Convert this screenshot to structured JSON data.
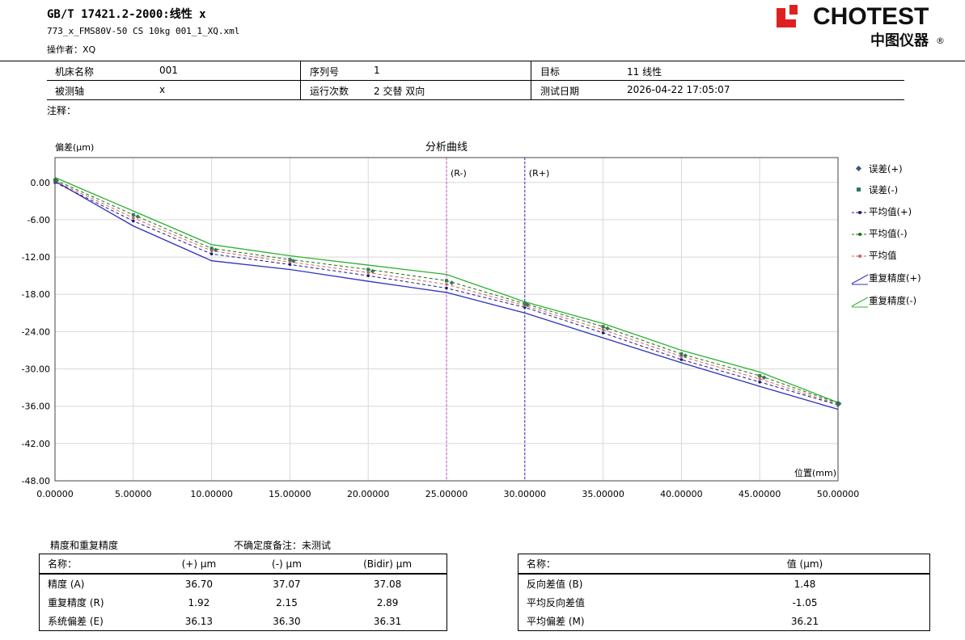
{
  "header": {
    "title": "GB/T 17421.2-2000:线性 x",
    "file": "773_x_FMS80V-50 CS 10kg 001_1_XQ.xml",
    "operator": "操作者：XQ",
    "logo_text": "CHOTEST",
    "logo_sub": "中图仪器",
    "logo_reg": "®",
    "brand_color": "#e02020"
  },
  "info": {
    "machine_label": "机床名称",
    "machine_value": "001",
    "axis_label": "被测轴",
    "axis_value": "x",
    "series_label": "序列号",
    "series_value": "1",
    "runs_label": "运行次数",
    "runs_value": "2 交替 双向",
    "target_label": "目标",
    "target_value": "11 线性",
    "date_label": "测试日期",
    "date_value": "2026-04-22 17:05:07",
    "notes_label": "注释："
  },
  "chart_data": {
    "type": "line",
    "title": "分析曲线",
    "ylabel": "偏差(μm)",
    "xlabel": "位置(mm)",
    "xlim": [
      0,
      50
    ],
    "ylim": [
      -48,
      4
    ],
    "x_ticks": [
      "0.00000",
      "5.00000",
      "10.00000",
      "15.00000",
      "20.00000",
      "25.00000",
      "30.00000",
      "35.00000",
      "40.00000",
      "45.00000",
      "50.00000"
    ],
    "y_ticks": [
      "0.00",
      "-6.00",
      "-12.00",
      "-18.00",
      "-24.00",
      "-30.00",
      "-36.00",
      "-42.00",
      "-48.00"
    ],
    "x": [
      0,
      5,
      10,
      15,
      20,
      25,
      30,
      35,
      40,
      45,
      50
    ],
    "markers": [
      {
        "label": "(R-)",
        "x": 25,
        "color": "#d040d0"
      },
      {
        "label": "(R+)",
        "x": 30,
        "color": "#3030c0"
      }
    ],
    "series": [
      {
        "name": "重复精度(+)",
        "color": "#3030c0",
        "style": "solid",
        "values": [
          0.2,
          -7.0,
          -12.6,
          -14.0,
          -15.9,
          -17.7,
          -21.0,
          -25.0,
          -29.0,
          -32.8,
          -36.5
        ]
      },
      {
        "name": "重复精度(-)",
        "color": "#30b030",
        "style": "solid",
        "values": [
          0.8,
          -4.6,
          -10.0,
          -11.8,
          -13.3,
          -14.8,
          -19.2,
          -22.7,
          -27.0,
          -30.5,
          -35.4
        ]
      },
      {
        "name": "平均值(+)",
        "color": "#1a1a80",
        "style": "dash",
        "values": [
          0.0,
          -6.2,
          -11.5,
          -13.2,
          -15.0,
          -17.0,
          -20.1,
          -24.2,
          -28.5,
          -32.1,
          -35.8
        ]
      },
      {
        "name": "平均值(-)",
        "color": "#1a701a",
        "style": "dash",
        "values": [
          0.4,
          -5.2,
          -10.6,
          -12.4,
          -14.0,
          -15.8,
          -19.5,
          -23.2,
          -27.6,
          -31.1,
          -35.5
        ]
      },
      {
        "name": "平均值",
        "color": "#d06060",
        "style": "dash",
        "values": [
          0.2,
          -5.7,
          -11.0,
          -12.8,
          -14.5,
          -16.4,
          -19.8,
          -23.7,
          -28.0,
          -31.6,
          -35.7
        ]
      }
    ],
    "legend": [
      "误差(+)",
      "误差(-)",
      "平均值(+)",
      "平均值(-)",
      "平均值",
      "重复精度(+)",
      "重复精度(-)"
    ],
    "legend_placement": "right",
    "grid": true
  },
  "tables": {
    "caption": "精度和重复精度",
    "uncertainty": "不确定度备注：未测试",
    "left": {
      "headers": [
        "名称：",
        "(+) μm",
        "(-) μm",
        "(Bidir) μm"
      ],
      "rows": [
        [
          "精度 (A)",
          "36.70",
          "37.07",
          "37.08"
        ],
        [
          "重复精度 (R)",
          "1.92",
          "2.15",
          "2.89"
        ],
        [
          "系统偏差 (E)",
          "36.13",
          "36.30",
          "36.31"
        ]
      ]
    },
    "right": {
      "headers": [
        "名称：",
        "值 (μm)"
      ],
      "rows": [
        [
          "反向差值 (B)",
          "1.48"
        ],
        [
          "平均反向差值",
          "-1.05"
        ],
        [
          "平均偏差 (M)",
          "36.21"
        ]
      ]
    }
  }
}
